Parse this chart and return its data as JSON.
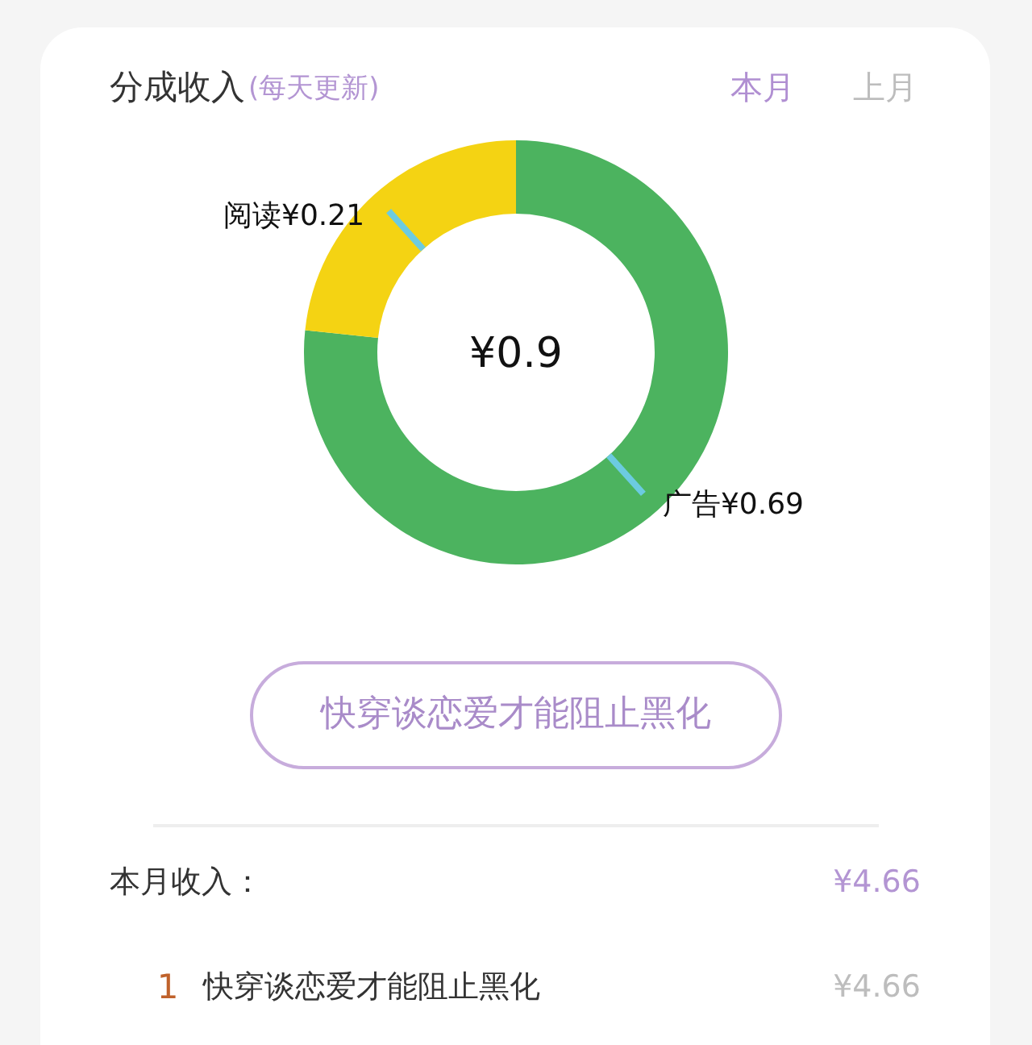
{
  "chart_data": {
    "type": "donut",
    "title": "分成收入",
    "subtitle": "(每天更新)",
    "categories": [
      "广告",
      "阅读"
    ],
    "values": [
      0.69,
      0.21
    ],
    "colors": [
      "#4cb35f",
      "#f4d313"
    ],
    "value_labels": [
      "¥0.69",
      "¥0.21"
    ],
    "annotations": [
      "¥0.9",
      "本月",
      "上月",
      "快穿谈恋爱才能阻止黑化",
      "本月收入：",
      "¥4.66",
      "1",
      "快穿谈恋爱才能阻止黑化",
      "¥4.66"
    ]
  }
}
